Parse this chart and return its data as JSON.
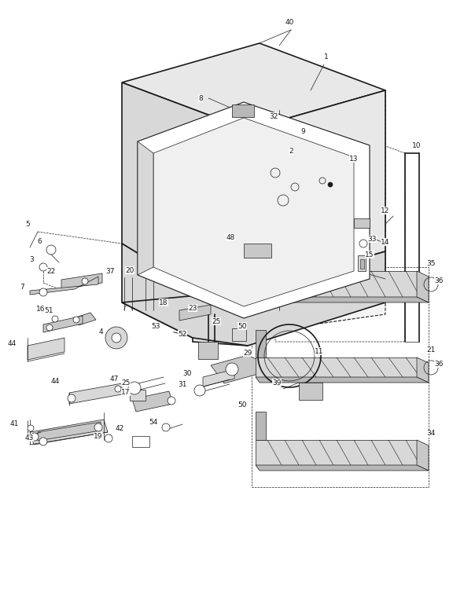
{
  "bg_color": "#ffffff",
  "lc": "#1a1a1a",
  "fig_w": 5.9,
  "fig_h": 7.65,
  "dpi": 100,
  "lw": 0.8,
  "lw2": 0.5,
  "gray1": "#e8e8e8",
  "gray2": "#d8d8d8",
  "gray3": "#c8c8c8",
  "gray4": "#b8b8b8",
  "white": "#ffffff",
  "label_fs": 6.5
}
